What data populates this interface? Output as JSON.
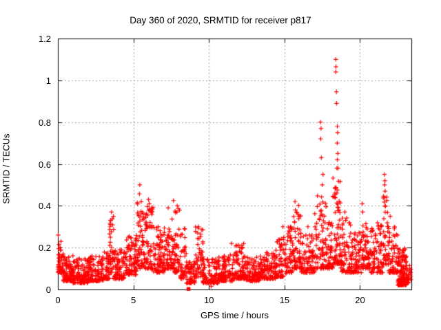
{
  "page": {
    "background": "#ffffff"
  },
  "chart_data": {
    "type": "scatter",
    "title": "Day 360 of 2020, SRMTID for receiver p817",
    "xlabel": "GPS time / hours",
    "ylabel": "SRMTID / TECUs",
    "xlim": [
      0,
      23.4
    ],
    "ylim": [
      0,
      1.2
    ],
    "xticks": [
      {
        "v": 0,
        "label": "0"
      },
      {
        "v": 5,
        "label": "5"
      },
      {
        "v": 10,
        "label": "10"
      },
      {
        "v": 15,
        "label": "15"
      },
      {
        "v": 20,
        "label": "20"
      }
    ],
    "yticks": [
      {
        "v": 0,
        "label": "0"
      },
      {
        "v": 0.2,
        "label": "0.2"
      },
      {
        "v": 0.4,
        "label": "0.4"
      },
      {
        "v": 0.6,
        "label": "0.6"
      },
      {
        "v": 0.8,
        "label": "0.8"
      },
      {
        "v": 1,
        "label": "1"
      },
      {
        "v": 1.2,
        "label": "1.2"
      }
    ],
    "grid": "dashed",
    "grid_color": "#9e9e9e",
    "axis_color": "#000000",
    "legend": "none",
    "marker": {
      "shape": "plus",
      "color": "#ff0000",
      "size": 7
    },
    "series_name": "SRMTID",
    "seed": 1234567,
    "cloud_segments": [
      [
        0.0,
        0.25,
        0.08,
        0.26,
        40
      ],
      [
        0.25,
        1.0,
        0.04,
        0.17,
        90
      ],
      [
        1.0,
        2.0,
        0.03,
        0.15,
        110
      ],
      [
        2.0,
        3.0,
        0.04,
        0.16,
        110
      ],
      [
        3.0,
        3.4,
        0.05,
        0.18,
        40
      ],
      [
        3.4,
        3.7,
        0.08,
        0.37,
        35
      ],
      [
        3.7,
        4.5,
        0.05,
        0.19,
        85
      ],
      [
        4.5,
        5.2,
        0.07,
        0.27,
        80
      ],
      [
        5.2,
        5.7,
        0.1,
        0.42,
        60
      ],
      [
        5.7,
        6.3,
        0.1,
        0.4,
        70
      ],
      [
        6.3,
        7.1,
        0.08,
        0.3,
        85
      ],
      [
        7.1,
        7.7,
        0.1,
        0.38,
        65
      ],
      [
        7.7,
        8.1,
        0.08,
        0.4,
        45
      ],
      [
        8.1,
        8.5,
        0.05,
        0.3,
        40
      ],
      [
        8.5,
        9.1,
        0.03,
        0.15,
        55
      ],
      [
        9.1,
        9.6,
        0.06,
        0.3,
        50
      ],
      [
        9.6,
        10.6,
        0.03,
        0.15,
        100
      ],
      [
        10.6,
        11.6,
        0.04,
        0.17,
        100
      ],
      [
        11.6,
        12.4,
        0.05,
        0.22,
        85
      ],
      [
        12.4,
        13.4,
        0.04,
        0.16,
        100
      ],
      [
        13.4,
        14.4,
        0.05,
        0.18,
        95
      ],
      [
        14.4,
        15.1,
        0.06,
        0.25,
        70
      ],
      [
        15.1,
        15.6,
        0.08,
        0.3,
        50
      ],
      [
        15.6,
        16.1,
        0.1,
        0.42,
        60
      ],
      [
        16.1,
        17.0,
        0.08,
        0.26,
        85
      ],
      [
        17.0,
        17.8,
        0.1,
        0.45,
        80
      ],
      [
        17.8,
        18.2,
        0.1,
        0.32,
        45
      ],
      [
        18.2,
        18.7,
        0.12,
        0.58,
        70
      ],
      [
        18.7,
        19.4,
        0.08,
        0.35,
        70
      ],
      [
        19.4,
        20.1,
        0.08,
        0.28,
        70
      ],
      [
        20.1,
        20.7,
        0.1,
        0.32,
        65
      ],
      [
        20.7,
        21.5,
        0.08,
        0.32,
        85
      ],
      [
        21.5,
        21.9,
        0.12,
        0.45,
        45
      ],
      [
        21.9,
        22.5,
        0.08,
        0.3,
        65
      ],
      [
        22.5,
        23.1,
        0.02,
        0.2,
        150
      ],
      [
        23.1,
        23.37,
        0.03,
        0.14,
        25
      ]
    ],
    "outlier_points": [
      [
        0.02,
        0.26
      ],
      [
        3.5,
        0.33
      ],
      [
        3.55,
        0.37
      ],
      [
        3.45,
        0.3
      ],
      [
        5.42,
        0.5
      ],
      [
        5.4,
        0.457
      ],
      [
        6.0,
        0.43
      ],
      [
        6.05,
        0.41
      ],
      [
        7.3,
        0.39
      ],
      [
        7.65,
        0.425
      ],
      [
        7.9,
        0.4
      ],
      [
        7.88,
        0.37
      ],
      [
        9.3,
        0.3
      ],
      [
        9.25,
        0.27
      ],
      [
        10.15,
        0.015
      ],
      [
        11.5,
        0.22
      ],
      [
        12.3,
        0.22
      ],
      [
        14.9,
        0.3
      ],
      [
        15.7,
        0.42
      ],
      [
        15.72,
        0.38
      ],
      [
        15.95,
        0.35
      ],
      [
        16.55,
        0.3
      ],
      [
        17.38,
        0.8
      ],
      [
        17.42,
        0.77
      ],
      [
        17.4,
        0.72
      ],
      [
        17.44,
        0.63
      ],
      [
        17.55,
        0.55
      ],
      [
        17.5,
        0.5
      ],
      [
        18.4,
        1.1
      ],
      [
        18.41,
        1.065
      ],
      [
        18.4,
        1.04
      ],
      [
        18.44,
        0.945
      ],
      [
        18.45,
        0.89
      ],
      [
        18.5,
        0.78
      ],
      [
        18.52,
        0.75
      ],
      [
        18.49,
        0.7
      ],
      [
        18.53,
        0.65
      ],
      [
        18.5,
        0.62
      ],
      [
        18.47,
        0.58
      ],
      [
        19.0,
        0.37
      ],
      [
        19.05,
        0.33
      ],
      [
        20.15,
        0.41
      ],
      [
        20.18,
        0.37
      ],
      [
        21.62,
        0.55
      ],
      [
        21.65,
        0.52
      ],
      [
        21.63,
        0.5
      ],
      [
        21.66,
        0.47
      ],
      [
        21.64,
        0.44
      ],
      [
        21.68,
        0.4
      ],
      [
        22.0,
        0.35
      ]
    ],
    "zero_marker": {
      "x": 8.65,
      "y": 0,
      "shape": "filled-square"
    }
  }
}
